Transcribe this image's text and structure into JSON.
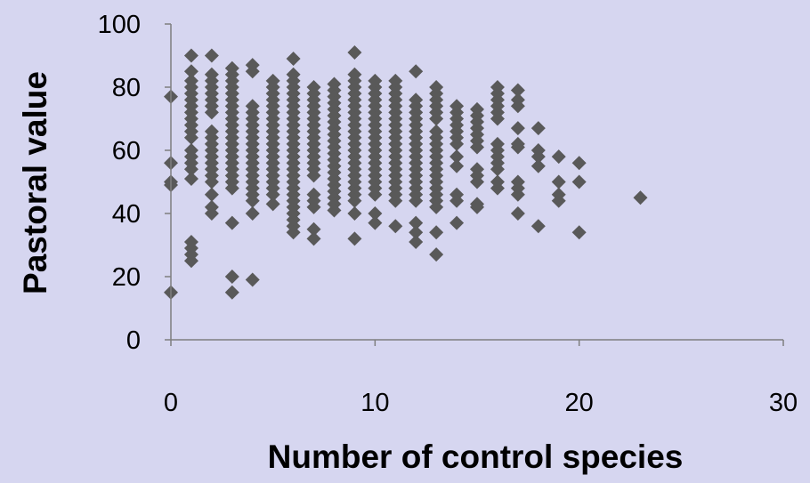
{
  "chart_data": {
    "type": "scatter",
    "title": "",
    "xlabel": "Number of control species",
    "ylabel": "Pastoral value",
    "xlim": [
      0,
      30
    ],
    "ylim": [
      0,
      100
    ],
    "x_ticks": [
      0,
      10,
      20,
      30
    ],
    "y_ticks": [
      0,
      20,
      40,
      60,
      80,
      100
    ],
    "grid": false,
    "legend": "none",
    "marker": "diamond",
    "colors": {
      "background": "#d6d6f0",
      "marker": "#595959",
      "axis": "#7f7f7f"
    },
    "points": [
      [
        0,
        77
      ],
      [
        0,
        56
      ],
      [
        0,
        50
      ],
      [
        0,
        49
      ],
      [
        0,
        15
      ],
      [
        1,
        90
      ],
      [
        1,
        85
      ],
      [
        1,
        82
      ],
      [
        1,
        80
      ],
      [
        1,
        78
      ],
      [
        1,
        76
      ],
      [
        1,
        74
      ],
      [
        1,
        72
      ],
      [
        1,
        70
      ],
      [
        1,
        68
      ],
      [
        1,
        66
      ],
      [
        1,
        64
      ],
      [
        1,
        60
      ],
      [
        1,
        58
      ],
      [
        1,
        56
      ],
      [
        1,
        54
      ],
      [
        1,
        51
      ],
      [
        1,
        31
      ],
      [
        1,
        29
      ],
      [
        1,
        27
      ],
      [
        1,
        25
      ],
      [
        2,
        90
      ],
      [
        2,
        84
      ],
      [
        2,
        82
      ],
      [
        2,
        80
      ],
      [
        2,
        78
      ],
      [
        2,
        76
      ],
      [
        2,
        74
      ],
      [
        2,
        72
      ],
      [
        2,
        66
      ],
      [
        2,
        64
      ],
      [
        2,
        62
      ],
      [
        2,
        60
      ],
      [
        2,
        58
      ],
      [
        2,
        56
      ],
      [
        2,
        54
      ],
      [
        2,
        52
      ],
      [
        2,
        50
      ],
      [
        2,
        46
      ],
      [
        2,
        42
      ],
      [
        2,
        40
      ],
      [
        3,
        86
      ],
      [
        3,
        84
      ],
      [
        3,
        82
      ],
      [
        3,
        80
      ],
      [
        3,
        78
      ],
      [
        3,
        76
      ],
      [
        3,
        74
      ],
      [
        3,
        72
      ],
      [
        3,
        70
      ],
      [
        3,
        68
      ],
      [
        3,
        66
      ],
      [
        3,
        64
      ],
      [
        3,
        62
      ],
      [
        3,
        60
      ],
      [
        3,
        58
      ],
      [
        3,
        56
      ],
      [
        3,
        54
      ],
      [
        3,
        52
      ],
      [
        3,
        50
      ],
      [
        3,
        48
      ],
      [
        3,
        37
      ],
      [
        3,
        20
      ],
      [
        3,
        15
      ],
      [
        4,
        87
      ],
      [
        4,
        85
      ],
      [
        4,
        74
      ],
      [
        4,
        72
      ],
      [
        4,
        70
      ],
      [
        4,
        68
      ],
      [
        4,
        66
      ],
      [
        4,
        64
      ],
      [
        4,
        62
      ],
      [
        4,
        60
      ],
      [
        4,
        58
      ],
      [
        4,
        56
      ],
      [
        4,
        54
      ],
      [
        4,
        52
      ],
      [
        4,
        50
      ],
      [
        4,
        48
      ],
      [
        4,
        46
      ],
      [
        4,
        44
      ],
      [
        4,
        40
      ],
      [
        4,
        19
      ],
      [
        5,
        82
      ],
      [
        5,
        80
      ],
      [
        5,
        78
      ],
      [
        5,
        76
      ],
      [
        5,
        74
      ],
      [
        5,
        72
      ],
      [
        5,
        70
      ],
      [
        5,
        68
      ],
      [
        5,
        66
      ],
      [
        5,
        64
      ],
      [
        5,
        62
      ],
      [
        5,
        60
      ],
      [
        5,
        58
      ],
      [
        5,
        56
      ],
      [
        5,
        54
      ],
      [
        5,
        52
      ],
      [
        5,
        50
      ],
      [
        5,
        48
      ],
      [
        5,
        46
      ],
      [
        5,
        43
      ],
      [
        6,
        89
      ],
      [
        6,
        84
      ],
      [
        6,
        82
      ],
      [
        6,
        80
      ],
      [
        6,
        78
      ],
      [
        6,
        76
      ],
      [
        6,
        74
      ],
      [
        6,
        72
      ],
      [
        6,
        70
      ],
      [
        6,
        68
      ],
      [
        6,
        66
      ],
      [
        6,
        64
      ],
      [
        6,
        62
      ],
      [
        6,
        60
      ],
      [
        6,
        58
      ],
      [
        6,
        56
      ],
      [
        6,
        54
      ],
      [
        6,
        52
      ],
      [
        6,
        50
      ],
      [
        6,
        48
      ],
      [
        6,
        46
      ],
      [
        6,
        44
      ],
      [
        6,
        42
      ],
      [
        6,
        40
      ],
      [
        6,
        38
      ],
      [
        6,
        36
      ],
      [
        6,
        34
      ],
      [
        7,
        80
      ],
      [
        7,
        78
      ],
      [
        7,
        76
      ],
      [
        7,
        74
      ],
      [
        7,
        72
      ],
      [
        7,
        70
      ],
      [
        7,
        68
      ],
      [
        7,
        66
      ],
      [
        7,
        64
      ],
      [
        7,
        62
      ],
      [
        7,
        60
      ],
      [
        7,
        58
      ],
      [
        7,
        56
      ],
      [
        7,
        54
      ],
      [
        7,
        52
      ],
      [
        7,
        46
      ],
      [
        7,
        44
      ],
      [
        7,
        42
      ],
      [
        7,
        35
      ],
      [
        7,
        32
      ],
      [
        8,
        81
      ],
      [
        8,
        79
      ],
      [
        8,
        77
      ],
      [
        8,
        75
      ],
      [
        8,
        73
      ],
      [
        8,
        71
      ],
      [
        8,
        69
      ],
      [
        8,
        67
      ],
      [
        8,
        65
      ],
      [
        8,
        63
      ],
      [
        8,
        61
      ],
      [
        8,
        59
      ],
      [
        8,
        57
      ],
      [
        8,
        55
      ],
      [
        8,
        53
      ],
      [
        8,
        51
      ],
      [
        8,
        49
      ],
      [
        8,
        47
      ],
      [
        8,
        45
      ],
      [
        8,
        43
      ],
      [
        8,
        41
      ],
      [
        9,
        91
      ],
      [
        9,
        84
      ],
      [
        9,
        82
      ],
      [
        9,
        80
      ],
      [
        9,
        78
      ],
      [
        9,
        76
      ],
      [
        9,
        74
      ],
      [
        9,
        72
      ],
      [
        9,
        70
      ],
      [
        9,
        68
      ],
      [
        9,
        66
      ],
      [
        9,
        64
      ],
      [
        9,
        62
      ],
      [
        9,
        60
      ],
      [
        9,
        58
      ],
      [
        9,
        56
      ],
      [
        9,
        54
      ],
      [
        9,
        52
      ],
      [
        9,
        50
      ],
      [
        9,
        48
      ],
      [
        9,
        46
      ],
      [
        9,
        44
      ],
      [
        9,
        40
      ],
      [
        9,
        32
      ],
      [
        10,
        82
      ],
      [
        10,
        80
      ],
      [
        10,
        78
      ],
      [
        10,
        76
      ],
      [
        10,
        74
      ],
      [
        10,
        72
      ],
      [
        10,
        70
      ],
      [
        10,
        68
      ],
      [
        10,
        66
      ],
      [
        10,
        64
      ],
      [
        10,
        62
      ],
      [
        10,
        60
      ],
      [
        10,
        58
      ],
      [
        10,
        56
      ],
      [
        10,
        54
      ],
      [
        10,
        52
      ],
      [
        10,
        50
      ],
      [
        10,
        48
      ],
      [
        10,
        46
      ],
      [
        10,
        40
      ],
      [
        10,
        37
      ],
      [
        11,
        82
      ],
      [
        11,
        80
      ],
      [
        11,
        78
      ],
      [
        11,
        76
      ],
      [
        11,
        74
      ],
      [
        11,
        72
      ],
      [
        11,
        70
      ],
      [
        11,
        68
      ],
      [
        11,
        66
      ],
      [
        11,
        64
      ],
      [
        11,
        62
      ],
      [
        11,
        60
      ],
      [
        11,
        58
      ],
      [
        11,
        56
      ],
      [
        11,
        54
      ],
      [
        11,
        52
      ],
      [
        11,
        50
      ],
      [
        11,
        48
      ],
      [
        11,
        46
      ],
      [
        11,
        44
      ],
      [
        11,
        36
      ],
      [
        12,
        85
      ],
      [
        12,
        76
      ],
      [
        12,
        74
      ],
      [
        12,
        72
      ],
      [
        12,
        70
      ],
      [
        12,
        68
      ],
      [
        12,
        66
      ],
      [
        12,
        64
      ],
      [
        12,
        62
      ],
      [
        12,
        60
      ],
      [
        12,
        58
      ],
      [
        12,
        56
      ],
      [
        12,
        54
      ],
      [
        12,
        52
      ],
      [
        12,
        50
      ],
      [
        12,
        48
      ],
      [
        12,
        46
      ],
      [
        12,
        44
      ],
      [
        12,
        37
      ],
      [
        12,
        34
      ],
      [
        12,
        31
      ],
      [
        13,
        80
      ],
      [
        13,
        78
      ],
      [
        13,
        76
      ],
      [
        13,
        74
      ],
      [
        13,
        72
      ],
      [
        13,
        70
      ],
      [
        13,
        66
      ],
      [
        13,
        64
      ],
      [
        13,
        62
      ],
      [
        13,
        60
      ],
      [
        13,
        58
      ],
      [
        13,
        56
      ],
      [
        13,
        54
      ],
      [
        13,
        52
      ],
      [
        13,
        50
      ],
      [
        13,
        48
      ],
      [
        13,
        46
      ],
      [
        13,
        44
      ],
      [
        13,
        42
      ],
      [
        13,
        34
      ],
      [
        13,
        27
      ],
      [
        14,
        74
      ],
      [
        14,
        72
      ],
      [
        14,
        70
      ],
      [
        14,
        68
      ],
      [
        14,
        66
      ],
      [
        14,
        64
      ],
      [
        14,
        62
      ],
      [
        14,
        58
      ],
      [
        14,
        55
      ],
      [
        14,
        46
      ],
      [
        14,
        44
      ],
      [
        14,
        37
      ],
      [
        15,
        73
      ],
      [
        15,
        71
      ],
      [
        15,
        69
      ],
      [
        15,
        67
      ],
      [
        15,
        65
      ],
      [
        15,
        63
      ],
      [
        15,
        61
      ],
      [
        15,
        54
      ],
      [
        15,
        52
      ],
      [
        15,
        50
      ],
      [
        15,
        43
      ],
      [
        15,
        42
      ],
      [
        16,
        80
      ],
      [
        16,
        78
      ],
      [
        16,
        76
      ],
      [
        16,
        74
      ],
      [
        16,
        72
      ],
      [
        16,
        70
      ],
      [
        16,
        62
      ],
      [
        16,
        60
      ],
      [
        16,
        58
      ],
      [
        16,
        56
      ],
      [
        16,
        54
      ],
      [
        16,
        50
      ],
      [
        16,
        48
      ],
      [
        17,
        79
      ],
      [
        17,
        76
      ],
      [
        17,
        74
      ],
      [
        17,
        67
      ],
      [
        17,
        62
      ],
      [
        17,
        61
      ],
      [
        17,
        50
      ],
      [
        17,
        48
      ],
      [
        17,
        46
      ],
      [
        17,
        40
      ],
      [
        18,
        67
      ],
      [
        18,
        60
      ],
      [
        18,
        58
      ],
      [
        18,
        55
      ],
      [
        18,
        36
      ],
      [
        19,
        58
      ],
      [
        19,
        50
      ],
      [
        19,
        46
      ],
      [
        19,
        44
      ],
      [
        20,
        56
      ],
      [
        20,
        50
      ],
      [
        20,
        34
      ],
      [
        23,
        45
      ]
    ]
  }
}
